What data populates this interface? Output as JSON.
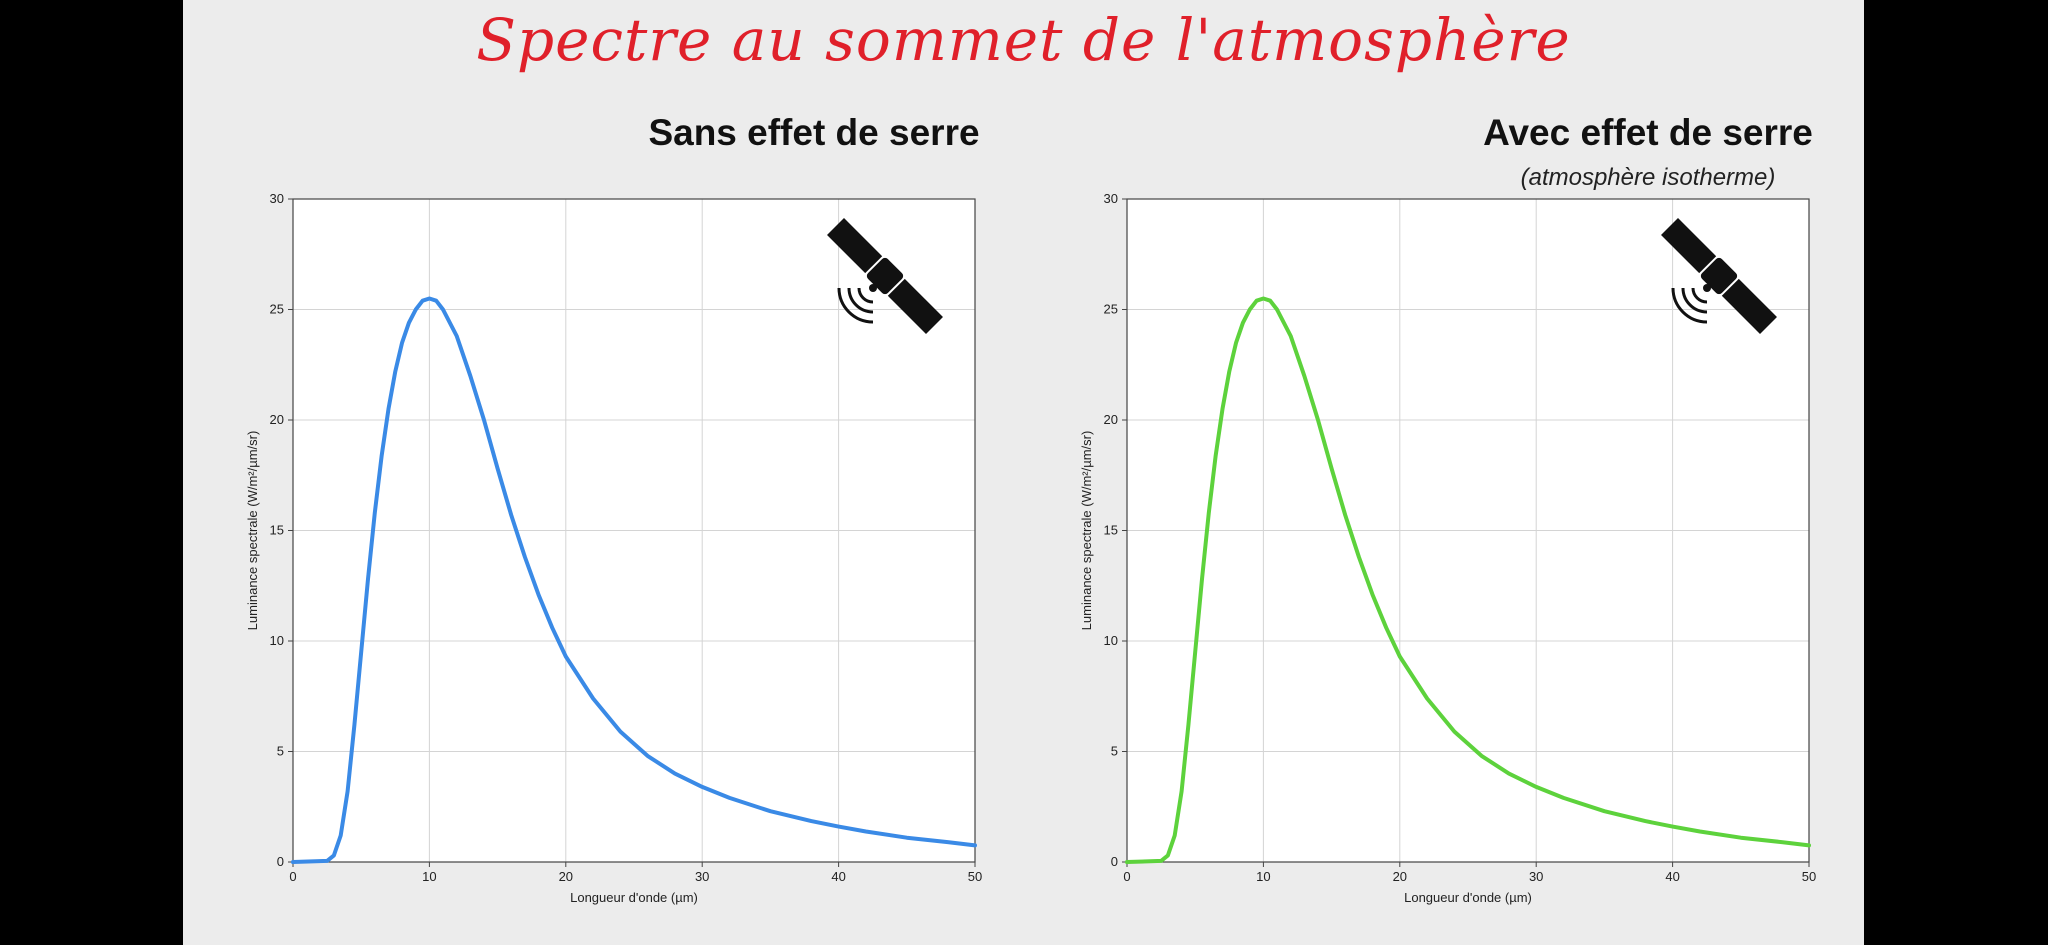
{
  "slide": {
    "title": "Spectre au sommet de l'atmosphère"
  },
  "panels": [
    {
      "title": "Sans effet de serre",
      "subtitle": ""
    },
    {
      "title": "Avec effet de serre",
      "subtitle": "(atmosphère isotherme)"
    }
  ],
  "icons": [
    "satellite-icon",
    "satellite-icon"
  ],
  "chart_data": [
    {
      "type": "line",
      "title": "Sans effet de serre",
      "xlabel": "Longueur d'onde (µm)",
      "ylabel": "Luminance  spectrale  (W/m²/µm/sr)",
      "xlim": [
        0,
        50
      ],
      "ylim": [
        0,
        30
      ],
      "xticks": [
        0,
        10,
        20,
        30,
        40,
        50
      ],
      "yticks": [
        0,
        5,
        10,
        15,
        20,
        25,
        30
      ],
      "grid": true,
      "color": "#3a8ae6",
      "series": [
        {
          "x": [
            0,
            2.5,
            3,
            3.5,
            4,
            4.5,
            5,
            5.5,
            6,
            6.5,
            7,
            7.5,
            8,
            8.5,
            9,
            9.5,
            10,
            10.5,
            11,
            12,
            13,
            14,
            15,
            16,
            17,
            18,
            19,
            20,
            22,
            24,
            26,
            28,
            30,
            32,
            35,
            38,
            40,
            42,
            45,
            48,
            50
          ],
          "y": [
            0,
            0.05,
            0.3,
            1.2,
            3.2,
            6.2,
            9.5,
            12.8,
            15.8,
            18.4,
            20.5,
            22.2,
            23.5,
            24.4,
            25.0,
            25.4,
            25.5,
            25.4,
            25.0,
            23.8,
            22.0,
            20.0,
            17.8,
            15.7,
            13.8,
            12.1,
            10.6,
            9.3,
            7.4,
            5.9,
            4.8,
            4.0,
            3.4,
            2.9,
            2.3,
            1.85,
            1.6,
            1.38,
            1.1,
            0.9,
            0.75
          ]
        }
      ]
    },
    {
      "type": "line",
      "title": "Avec effet de serre",
      "subtitle": "(atmosphère isotherme)",
      "xlabel": "Longueur d'onde (µm)",
      "ylabel": "Luminance  spectrale  (W/m²/µm/sr)",
      "xlim": [
        0,
        50
      ],
      "ylim": [
        0,
        30
      ],
      "xticks": [
        0,
        10,
        20,
        30,
        40,
        50
      ],
      "yticks": [
        0,
        5,
        10,
        15,
        20,
        25,
        30
      ],
      "grid": true,
      "color": "#5dd23c",
      "series": [
        {
          "x": [
            0,
            2.5,
            3,
            3.5,
            4,
            4.5,
            5,
            5.5,
            6,
            6.5,
            7,
            7.5,
            8,
            8.5,
            9,
            9.5,
            10,
            10.5,
            11,
            12,
            13,
            14,
            15,
            16,
            17,
            18,
            19,
            20,
            22,
            24,
            26,
            28,
            30,
            32,
            35,
            38,
            40,
            42,
            45,
            48,
            50
          ],
          "y": [
            0,
            0.05,
            0.3,
            1.2,
            3.2,
            6.2,
            9.5,
            12.8,
            15.8,
            18.4,
            20.5,
            22.2,
            23.5,
            24.4,
            25.0,
            25.4,
            25.5,
            25.4,
            25.0,
            23.8,
            22.0,
            20.0,
            17.8,
            15.7,
            13.8,
            12.1,
            10.6,
            9.3,
            7.4,
            5.9,
            4.8,
            4.0,
            3.4,
            2.9,
            2.3,
            1.85,
            1.6,
            1.38,
            1.1,
            0.9,
            0.75
          ]
        }
      ]
    }
  ]
}
